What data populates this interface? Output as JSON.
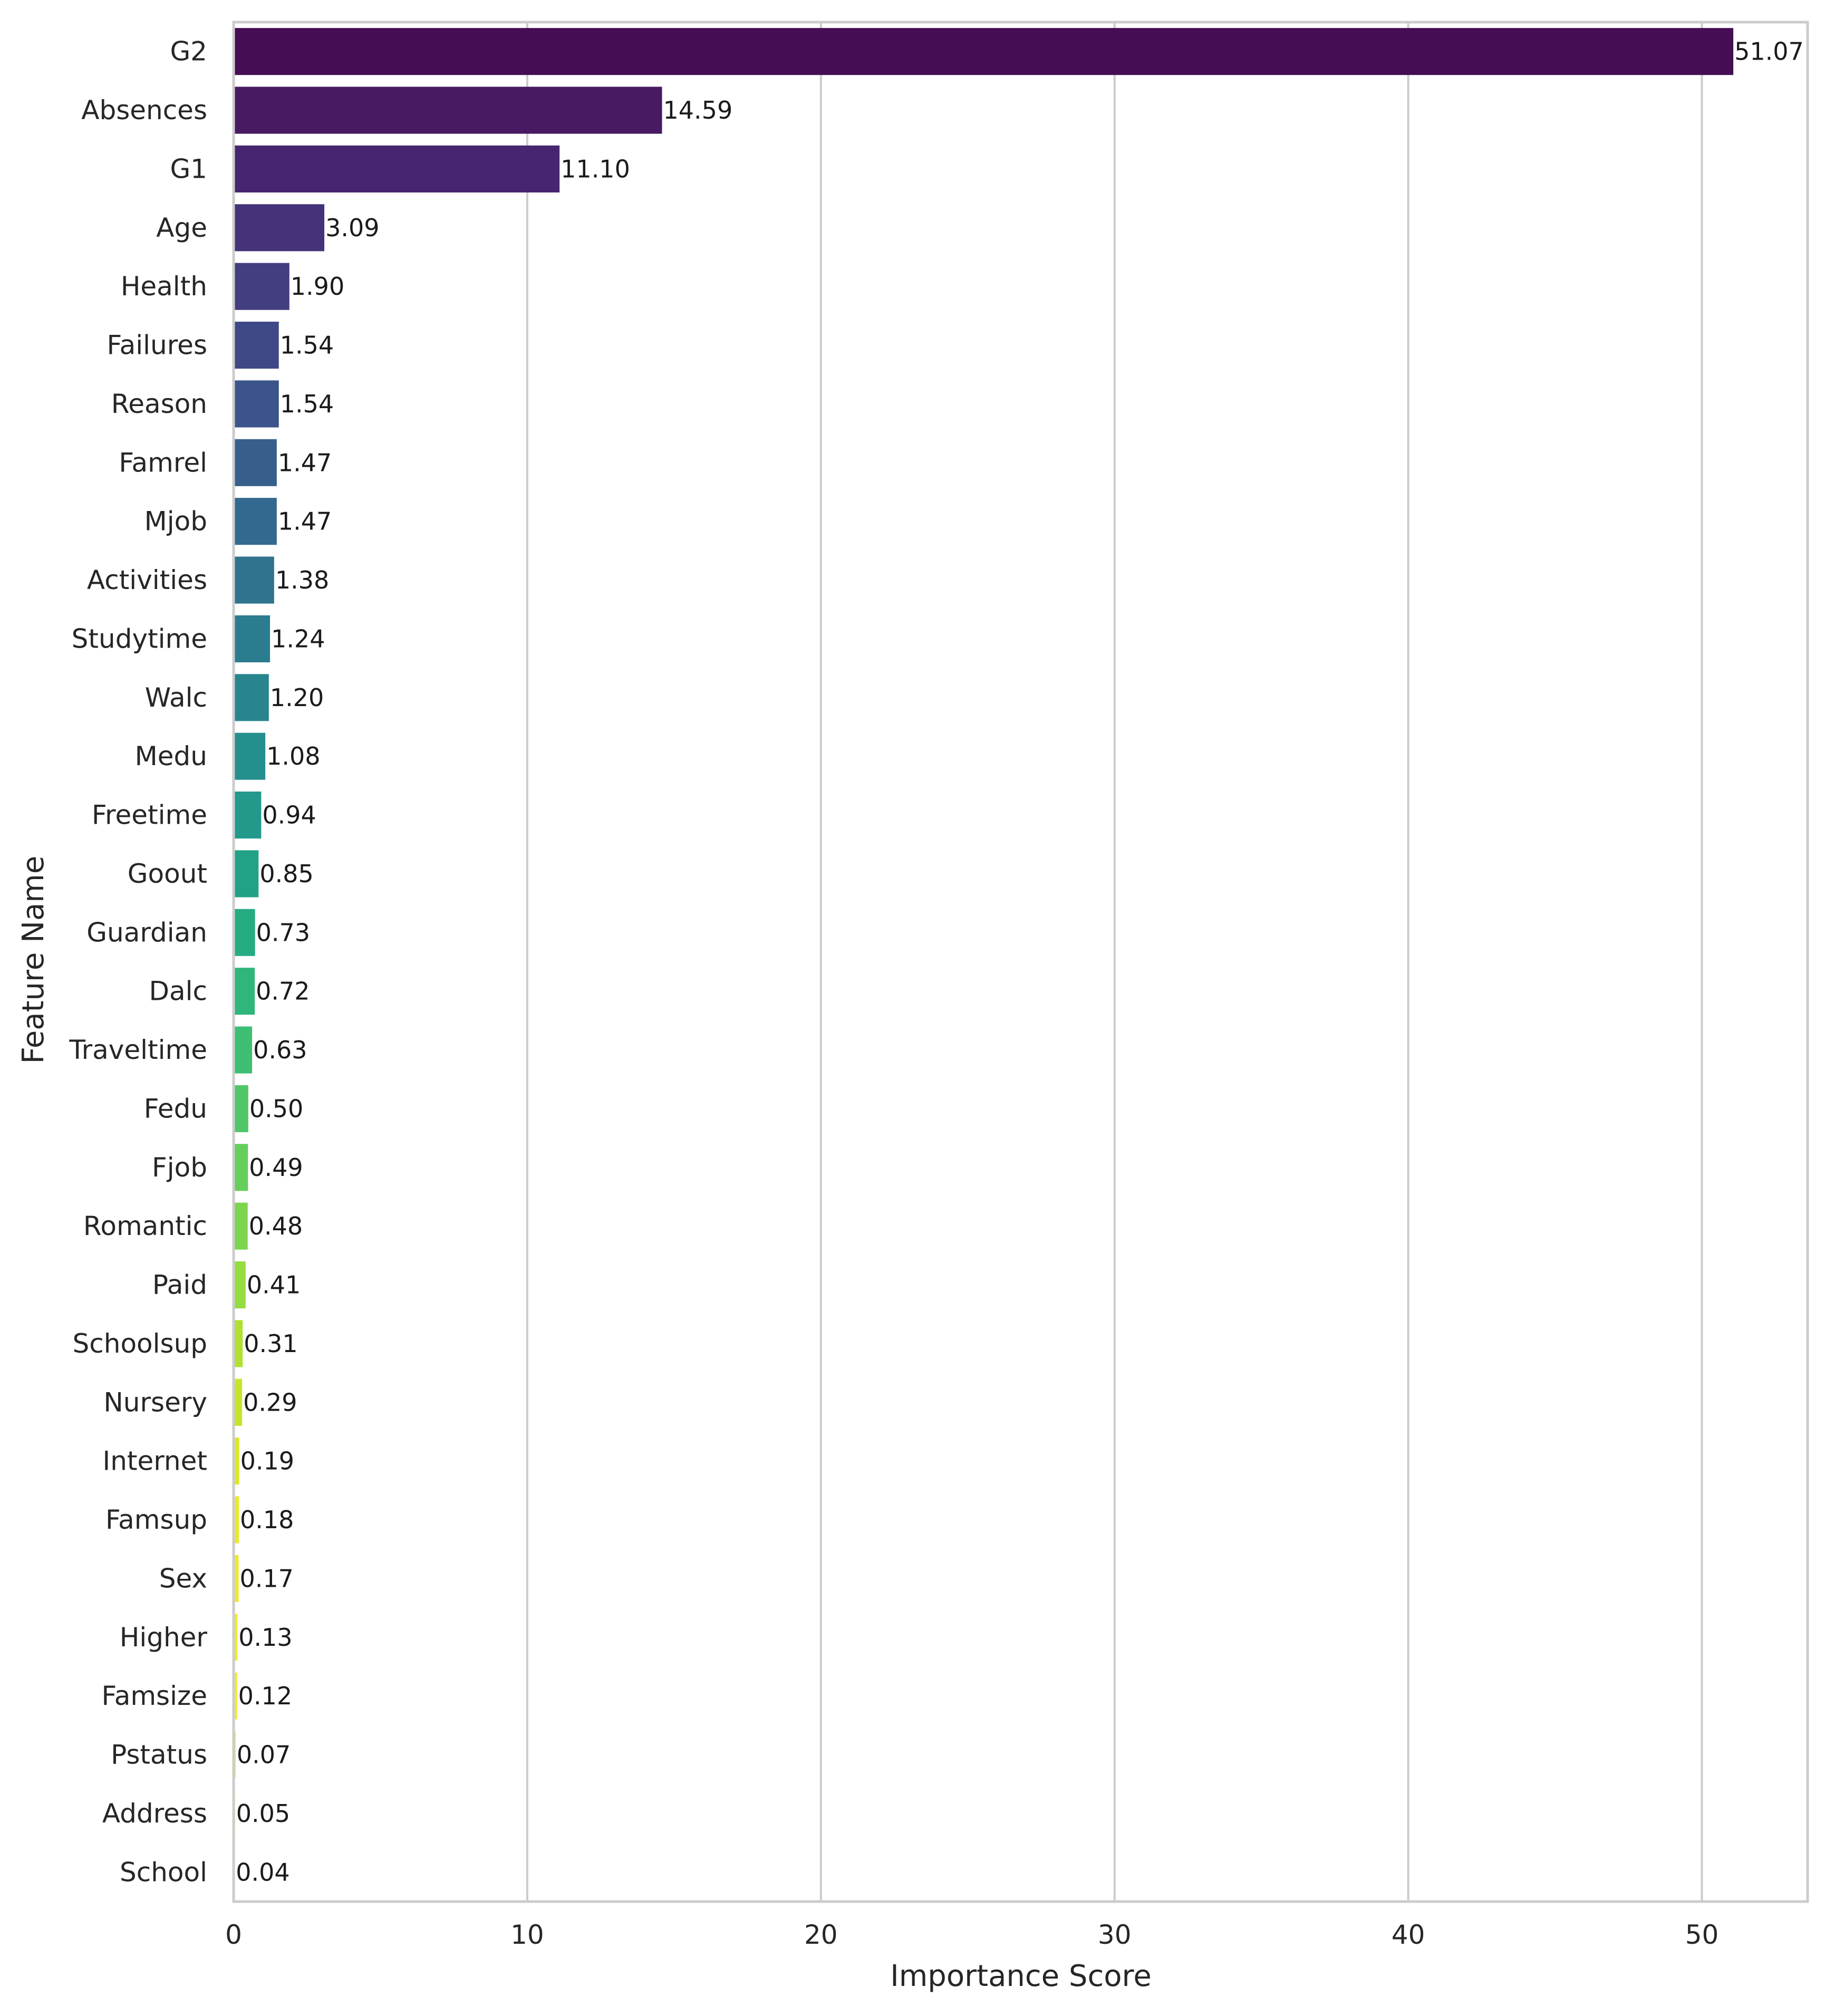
{
  "chart_data": {
    "type": "bar",
    "orientation": "horizontal",
    "title": "",
    "xlabel": "Importance Score",
    "ylabel": "Feature Name",
    "xlim": [
      0,
      53.6
    ],
    "xticks": [
      0,
      10,
      20,
      30,
      40,
      50
    ],
    "grid": "vertical",
    "palette": "viridis",
    "categories": [
      "G2",
      "Absences",
      "G1",
      "Age",
      "Health",
      "Failures",
      "Reason",
      "Famrel",
      "Mjob",
      "Activities",
      "Studytime",
      "Walc",
      "Medu",
      "Freetime",
      "Goout",
      "Guardian",
      "Dalc",
      "Traveltime",
      "Fedu",
      "Fjob",
      "Romantic",
      "Paid",
      "Schoolsup",
      "Nursery",
      "Internet",
      "Famsup",
      "Sex",
      "Higher",
      "Famsize",
      "Pstatus",
      "Address",
      "School"
    ],
    "values": [
      51.07,
      14.59,
      11.1,
      3.09,
      1.9,
      1.54,
      1.54,
      1.47,
      1.47,
      1.38,
      1.24,
      1.2,
      1.08,
      0.94,
      0.85,
      0.73,
      0.72,
      0.63,
      0.5,
      0.49,
      0.48,
      0.41,
      0.31,
      0.29,
      0.19,
      0.18,
      0.17,
      0.13,
      0.12,
      0.07,
      0.05,
      0.04
    ],
    "value_labels": [
      "51.07",
      "14.59",
      "11.10",
      "3.09",
      "1.90",
      "1.54",
      "1.54",
      "1.47",
      "1.47",
      "1.38",
      "1.24",
      "1.20",
      "1.08",
      "0.94",
      "0.85",
      "0.73",
      "0.72",
      "0.63",
      "0.50",
      "0.49",
      "0.48",
      "0.41",
      "0.31",
      "0.29",
      "0.19",
      "0.18",
      "0.17",
      "0.13",
      "0.12",
      "0.07",
      "0.05",
      "0.04"
    ],
    "colors": [
      "#450d54",
      "#471a62",
      "#47266f",
      "#453278",
      "#433e80",
      "#3f4986",
      "#3b548a",
      "#375f8c",
      "#33698e",
      "#2f738e",
      "#2b7c8e",
      "#28858e",
      "#258f8d",
      "#22998b",
      "#21a287",
      "#26ac82",
      "#30b57b",
      "#3ebe73",
      "#50c669",
      "#65ce5c",
      "#7cd54f",
      "#95dc40",
      "#aee132",
      "#c6e528",
      "#d9e927",
      "#e8ea29",
      "#f0e82b",
      "#f4e72c",
      "#f7e72d",
      "#f9e72e",
      "#fbe72f",
      "#fde725"
    ]
  }
}
